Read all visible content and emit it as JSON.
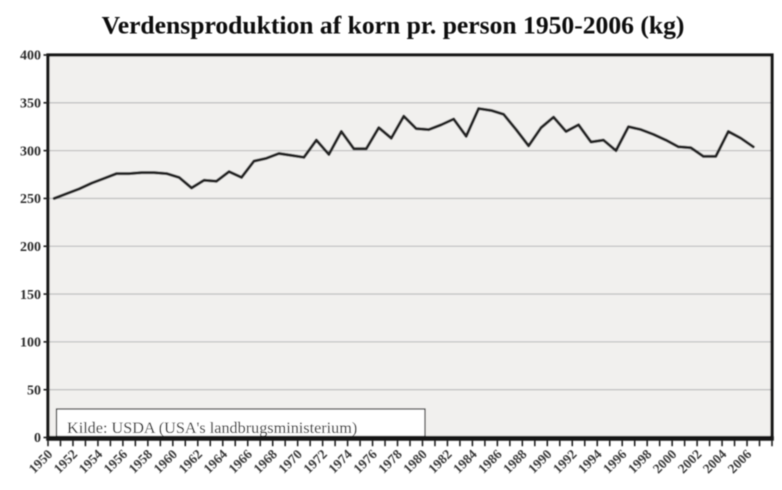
{
  "title": "Verdensproduktion af korn pr. person 1950-2006 (kg)",
  "source_note": "Kilde: USDA (USA's landbrugsministerium)",
  "colors": {
    "background": "#ffffff",
    "plot_background": "#f1f0ee",
    "gridline": "#c3c3c3",
    "frame": "#161616",
    "line": "#262626",
    "title_text": "#0b0b0b",
    "axis_label_text": "#2d2d2d",
    "tick_label_text": "#3a3a3a",
    "source_box_fill": "#ffffff",
    "source_box_border": "#1a1a1a"
  },
  "chart_data": {
    "type": "line",
    "title": "Verdensproduktion af korn pr. person 1950-2006 (kg)",
    "source_note": "Kilde: USDA (USA's landbrugsministerium)",
    "xlabel": "",
    "ylabel": "",
    "x": [
      1950,
      1951,
      1952,
      1953,
      1954,
      1955,
      1956,
      1957,
      1958,
      1959,
      1960,
      1961,
      1962,
      1963,
      1964,
      1965,
      1966,
      1967,
      1968,
      1969,
      1970,
      1971,
      1972,
      1973,
      1974,
      1975,
      1976,
      1977,
      1978,
      1979,
      1980,
      1981,
      1982,
      1983,
      1984,
      1985,
      1986,
      1987,
      1988,
      1989,
      1990,
      1991,
      1992,
      1993,
      1994,
      1995,
      1996,
      1997,
      1998,
      1999,
      2000,
      2001,
      2002,
      2003,
      2004,
      2005,
      2006
    ],
    "values": [
      250,
      255,
      260,
      266,
      271,
      276,
      276,
      277,
      277,
      276,
      272,
      261,
      269,
      268,
      278,
      272,
      289,
      292,
      297,
      295,
      293,
      311,
      296,
      320,
      302,
      302,
      324,
      313,
      336,
      323,
      322,
      327,
      333,
      315,
      344,
      342,
      338,
      322,
      305,
      324,
      335,
      320,
      327,
      309,
      311,
      300,
      325,
      322,
      317,
      311,
      304,
      303,
      294,
      294,
      320,
      313,
      304
    ],
    "ylim": [
      0,
      400
    ],
    "y_ticks": [
      0,
      50,
      100,
      150,
      200,
      250,
      300,
      350,
      400
    ],
    "x_tick_labels": [
      "1950",
      "1952",
      "1954",
      "1956",
      "1958",
      "1960",
      "1962",
      "1964",
      "1966",
      "1968",
      "1970",
      "1972",
      "1974",
      "1976",
      "1978",
      "1980",
      "1982",
      "1984",
      "1986",
      "1988",
      "1990",
      "1992",
      "1994",
      "1996",
      "1998",
      "2000",
      "2002",
      "2004",
      "2006"
    ],
    "x_tick_label_step": 2,
    "grid": "horizontal",
    "legend_position": "none"
  }
}
